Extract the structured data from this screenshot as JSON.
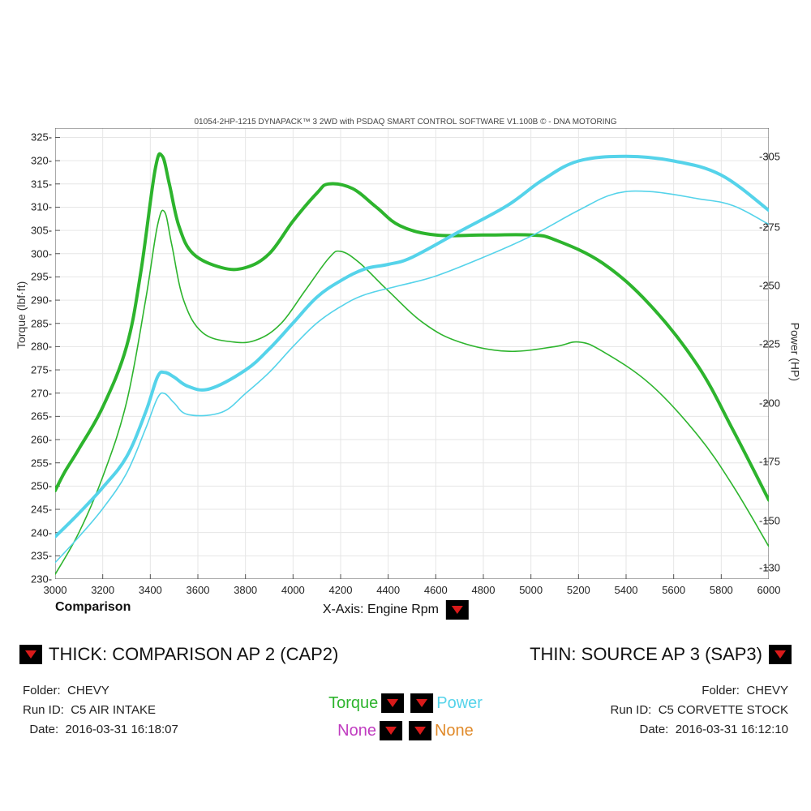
{
  "header": {
    "title": "01054-2HP-1215 DYNAPACK™ 3 2WD with PSDAQ SMART CONTROL SOFTWARE V1.100B © - DNA MOTORING"
  },
  "chart": {
    "type": "line",
    "background_color": "#ffffff",
    "grid_color": "#e6e6e6",
    "axis_color": "#555555",
    "x": {
      "label": "X-Axis: Engine Rpm",
      "min": 3000,
      "max": 6000,
      "tick_step": 200,
      "ticks": [
        3000,
        3200,
        3400,
        3600,
        3800,
        4000,
        4200,
        4400,
        4600,
        4800,
        5000,
        5200,
        5400,
        5600,
        5800,
        6000
      ]
    },
    "y_left": {
      "label": "Torque (lbf·ft)",
      "min": 230,
      "max": 327,
      "tick_step": 5,
      "ticks": [
        230,
        235,
        240,
        245,
        250,
        255,
        260,
        265,
        270,
        275,
        280,
        285,
        290,
        295,
        300,
        305,
        310,
        315,
        320,
        325
      ]
    },
    "y_right": {
      "label": "Power (HP)",
      "min": 125,
      "max": 317,
      "ticks": [
        130,
        150,
        175,
        200,
        225,
        250,
        275,
        305
      ]
    },
    "series": [
      {
        "name": "torque_thick",
        "axis": "left",
        "color": "#2db42d",
        "width": 4,
        "points": [
          [
            3000,
            249
          ],
          [
            3040,
            253
          ],
          [
            3100,
            258
          ],
          [
            3200,
            267
          ],
          [
            3300,
            280
          ],
          [
            3360,
            296
          ],
          [
            3420,
            318
          ],
          [
            3450,
            321
          ],
          [
            3480,
            315
          ],
          [
            3520,
            306
          ],
          [
            3580,
            300
          ],
          [
            3700,
            297
          ],
          [
            3800,
            297
          ],
          [
            3900,
            300
          ],
          [
            4000,
            307
          ],
          [
            4100,
            313
          ],
          [
            4150,
            315
          ],
          [
            4250,
            314
          ],
          [
            4350,
            310
          ],
          [
            4450,
            306
          ],
          [
            4600,
            304
          ],
          [
            4800,
            304
          ],
          [
            5000,
            304
          ],
          [
            5100,
            303
          ],
          [
            5300,
            298
          ],
          [
            5500,
            289
          ],
          [
            5700,
            276
          ],
          [
            5850,
            262
          ],
          [
            6000,
            247
          ]
        ]
      },
      {
        "name": "torque_thin",
        "axis": "left",
        "color": "#2db42d",
        "width": 1.6,
        "points": [
          [
            3000,
            231
          ],
          [
            3100,
            240
          ],
          [
            3200,
            252
          ],
          [
            3300,
            268
          ],
          [
            3380,
            290
          ],
          [
            3430,
            306
          ],
          [
            3460,
            309
          ],
          [
            3490,
            302
          ],
          [
            3540,
            290
          ],
          [
            3620,
            283
          ],
          [
            3750,
            281
          ],
          [
            3850,
            281.5
          ],
          [
            3950,
            285
          ],
          [
            4050,
            292
          ],
          [
            4150,
            299
          ],
          [
            4200,
            300.5
          ],
          [
            4280,
            298
          ],
          [
            4400,
            292
          ],
          [
            4550,
            285
          ],
          [
            4700,
            281
          ],
          [
            4900,
            279
          ],
          [
            5100,
            280
          ],
          [
            5200,
            281
          ],
          [
            5300,
            279
          ],
          [
            5500,
            272
          ],
          [
            5700,
            261
          ],
          [
            5850,
            250
          ],
          [
            6000,
            237
          ]
        ]
      },
      {
        "name": "power_thick",
        "axis": "right",
        "color": "#55d3ea",
        "width": 4,
        "points": [
          [
            3000,
            143
          ],
          [
            3100,
            153
          ],
          [
            3200,
            164
          ],
          [
            3300,
            177
          ],
          [
            3380,
            196
          ],
          [
            3430,
            211
          ],
          [
            3460,
            213
          ],
          [
            3500,
            211
          ],
          [
            3560,
            207
          ],
          [
            3650,
            206
          ],
          [
            3800,
            214
          ],
          [
            3900,
            223
          ],
          [
            4000,
            234
          ],
          [
            4100,
            245
          ],
          [
            4200,
            252
          ],
          [
            4300,
            257
          ],
          [
            4400,
            259
          ],
          [
            4500,
            262
          ],
          [
            4700,
            273
          ],
          [
            4900,
            284
          ],
          [
            5050,
            295
          ],
          [
            5200,
            303
          ],
          [
            5400,
            305
          ],
          [
            5600,
            303
          ],
          [
            5800,
            297
          ],
          [
            6000,
            282
          ]
        ]
      },
      {
        "name": "power_thin",
        "axis": "right",
        "color": "#55d3ea",
        "width": 1.6,
        "points": [
          [
            3000,
            132
          ],
          [
            3100,
            143
          ],
          [
            3200,
            155
          ],
          [
            3300,
            170
          ],
          [
            3380,
            189
          ],
          [
            3430,
            202
          ],
          [
            3460,
            204
          ],
          [
            3500,
            200
          ],
          [
            3560,
            195
          ],
          [
            3700,
            196
          ],
          [
            3800,
            204
          ],
          [
            3900,
            213
          ],
          [
            4000,
            224
          ],
          [
            4100,
            234
          ],
          [
            4200,
            241
          ],
          [
            4300,
            246
          ],
          [
            4450,
            250
          ],
          [
            4600,
            254
          ],
          [
            4800,
            262
          ],
          [
            5000,
            271
          ],
          [
            5200,
            282
          ],
          [
            5350,
            289
          ],
          [
            5500,
            290
          ],
          [
            5700,
            287
          ],
          [
            5850,
            284
          ],
          [
            6000,
            276
          ]
        ]
      }
    ]
  },
  "legend": {
    "comparison_label": "Comparison",
    "thick_label": "THICK: COMPARISON AP 2 (CAP2)",
    "thin_label": "THIN: SOURCE AP 3 (SAP3)",
    "torque_label": "Torque",
    "power_label": "Power",
    "none_label": "None",
    "colors": {
      "torque": "#2db42d",
      "power": "#55d3ea",
      "none1": "#c03cc0",
      "none2": "#e08a2a"
    }
  },
  "meta_left": {
    "folder_label": "Folder:",
    "folder": "CHEVY",
    "runid_label": "Run ID:",
    "runid": "C5 AIR INTAKE",
    "date_label": "Date:",
    "date": "2016-03-31 16:18:07"
  },
  "meta_right": {
    "folder_label": "Folder:",
    "folder": "CHEVY",
    "runid_label": "Run ID:",
    "runid": "C5 CORVETTE STOCK",
    "date_label": "Date:",
    "date": "2016-03-31 16:12:10"
  }
}
